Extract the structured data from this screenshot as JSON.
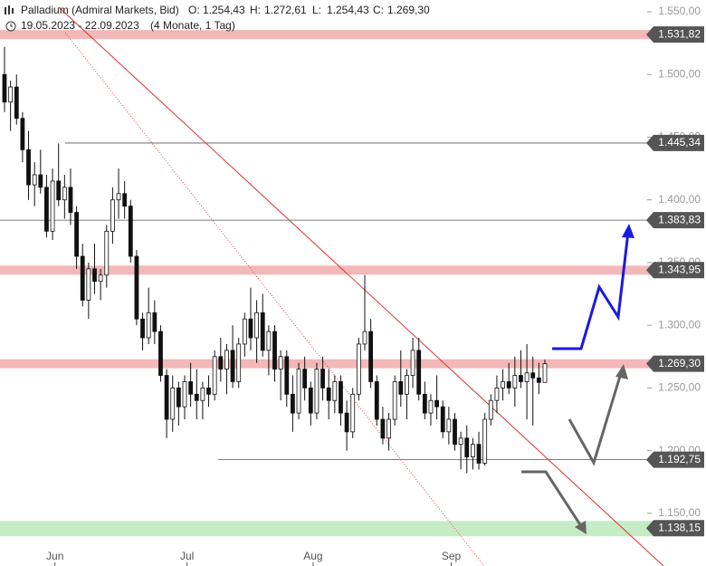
{
  "header": {
    "instrument": "Palladium (Admiral Markets, Bid)",
    "ohlc": [
      {
        "key": "O:",
        "label": "1.254,43"
      },
      {
        "key": "H:",
        "label": "1.272,61"
      },
      {
        "key": "L:",
        "label": "1.254,43"
      },
      {
        "key": "C:",
        "label": "1.269,30"
      }
    ],
    "range": "19.05.2023 - 22.09.2023",
    "span": "(4 Monate, 1 Tag)"
  },
  "chart_data": {
    "type": "candlestick",
    "categories": [
      null,
      null,
      null,
      null,
      null,
      null,
      null,
      null,
      null,
      "Jun",
      null,
      null,
      null,
      null,
      null,
      null,
      null,
      null,
      null,
      null,
      null,
      null,
      null,
      null,
      null,
      null,
      null,
      null,
      null,
      null,
      null,
      "Jul",
      null,
      null,
      null,
      null,
      null,
      null,
      null,
      null,
      null,
      null,
      null,
      null,
      null,
      null,
      null,
      null,
      null,
      null,
      null,
      null,
      "Aug",
      null,
      null,
      null,
      null,
      null,
      null,
      null,
      null,
      null,
      null,
      null,
      null,
      null,
      null,
      null,
      null,
      null,
      null,
      null,
      null,
      null,
      null,
      "Sep",
      null,
      null,
      null,
      null,
      null,
      null,
      null,
      null,
      null,
      null,
      null,
      null,
      null,
      null,
      null
    ],
    "ohlc": [
      [
        1500,
        1522,
        1470,
        1478
      ],
      [
        1478,
        1495,
        1455,
        1490
      ],
      [
        1490,
        1500,
        1460,
        1465
      ],
      [
        1465,
        1470,
        1430,
        1440
      ],
      [
        1440,
        1455,
        1400,
        1412
      ],
      [
        1412,
        1430,
        1395,
        1420
      ],
      [
        1420,
        1440,
        1405,
        1410
      ],
      [
        1410,
        1420,
        1370,
        1375
      ],
      [
        1375,
        1425,
        1368,
        1415
      ],
      [
        1415,
        1445,
        1395,
        1400
      ],
      [
        1400,
        1420,
        1385,
        1410
      ],
      [
        1410,
        1425,
        1380,
        1390
      ],
      [
        1390,
        1395,
        1345,
        1355
      ],
      [
        1355,
        1365,
        1315,
        1320
      ],
      [
        1320,
        1350,
        1305,
        1345
      ],
      [
        1345,
        1365,
        1325,
        1335
      ],
      [
        1335,
        1345,
        1320,
        1340
      ],
      [
        1340,
        1380,
        1330,
        1375
      ],
      [
        1375,
        1410,
        1365,
        1400
      ],
      [
        1400,
        1425,
        1385,
        1405
      ],
      [
        1405,
        1415,
        1385,
        1395
      ],
      [
        1395,
        1400,
        1350,
        1355
      ],
      [
        1355,
        1360,
        1300,
        1305
      ],
      [
        1305,
        1310,
        1280,
        1290
      ],
      [
        1290,
        1330,
        1285,
        1310
      ],
      [
        1310,
        1320,
        1285,
        1295
      ],
      [
        1295,
        1300,
        1255,
        1260
      ],
      [
        1260,
        1265,
        1210,
        1225
      ],
      [
        1225,
        1260,
        1215,
        1250
      ],
      [
        1250,
        1255,
        1220,
        1235
      ],
      [
        1235,
        1260,
        1225,
        1255
      ],
      [
        1255,
        1270,
        1235,
        1245
      ],
      [
        1245,
        1265,
        1225,
        1240
      ],
      [
        1240,
        1255,
        1225,
        1250
      ],
      [
        1250,
        1260,
        1235,
        1245
      ],
      [
        1245,
        1280,
        1240,
        1275
      ],
      [
        1275,
        1290,
        1255,
        1265
      ],
      [
        1265,
        1285,
        1245,
        1280
      ],
      [
        1280,
        1300,
        1250,
        1255
      ],
      [
        1255,
        1290,
        1250,
        1285
      ],
      [
        1285,
        1310,
        1275,
        1305
      ],
      [
        1305,
        1330,
        1280,
        1290
      ],
      [
        1290,
        1320,
        1270,
        1310
      ],
      [
        1310,
        1325,
        1275,
        1280
      ],
      [
        1280,
        1300,
        1260,
        1295
      ],
      [
        1295,
        1300,
        1255,
        1265
      ],
      [
        1265,
        1280,
        1240,
        1275
      ],
      [
        1275,
        1280,
        1235,
        1245
      ],
      [
        1245,
        1260,
        1215,
        1230
      ],
      [
        1230,
        1270,
        1225,
        1265
      ],
      [
        1265,
        1275,
        1240,
        1250
      ],
      [
        1250,
        1255,
        1220,
        1230
      ],
      [
        1230,
        1270,
        1225,
        1265
      ],
      [
        1265,
        1275,
        1240,
        1250
      ],
      [
        1250,
        1265,
        1225,
        1240
      ],
      [
        1240,
        1260,
        1230,
        1255
      ],
      [
        1255,
        1260,
        1220,
        1230
      ],
      [
        1230,
        1240,
        1200,
        1215
      ],
      [
        1215,
        1250,
        1210,
        1245
      ],
      [
        1245,
        1290,
        1240,
        1285
      ],
      [
        1285,
        1340,
        1280,
        1295
      ],
      [
        1295,
        1305,
        1250,
        1255
      ],
      [
        1255,
        1260,
        1220,
        1225
      ],
      [
        1225,
        1235,
        1205,
        1210
      ],
      [
        1210,
        1230,
        1200,
        1225
      ],
      [
        1225,
        1260,
        1220,
        1255
      ],
      [
        1255,
        1280,
        1235,
        1245
      ],
      [
        1245,
        1265,
        1225,
        1260
      ],
      [
        1260,
        1290,
        1250,
        1280
      ],
      [
        1280,
        1290,
        1240,
        1245
      ],
      [
        1245,
        1255,
        1225,
        1230
      ],
      [
        1230,
        1245,
        1220,
        1240
      ],
      [
        1240,
        1260,
        1225,
        1235
      ],
      [
        1235,
        1240,
        1210,
        1215
      ],
      [
        1215,
        1235,
        1205,
        1225
      ],
      [
        1225,
        1230,
        1200,
        1205
      ],
      [
        1205,
        1215,
        1185,
        1210
      ],
      [
        1210,
        1220,
        1182,
        1195
      ],
      [
        1195,
        1210,
        1185,
        1205
      ],
      [
        1205,
        1215,
        1185,
        1190
      ],
      [
        1190,
        1230,
        1188,
        1225
      ],
      [
        1225,
        1245,
        1220,
        1240
      ],
      [
        1240,
        1260,
        1230,
        1250
      ],
      [
        1250,
        1265,
        1240,
        1255
      ],
      [
        1255,
        1270,
        1245,
        1250
      ],
      [
        1250,
        1275,
        1235,
        1260
      ],
      [
        1260,
        1280,
        1250,
        1255
      ],
      [
        1255,
        1285,
        1225,
        1262
      ],
      [
        1262,
        1275,
        1220,
        1258
      ],
      [
        1258,
        1270,
        1245,
        1254.43
      ],
      [
        1254.43,
        1272.61,
        1254.43,
        1269.3
      ]
    ],
    "ylim": [
      1108,
      1559.4
    ],
    "yticks": [
      {
        "value": 1550,
        "label": "1.550,00"
      },
      {
        "value": 1500,
        "label": "1.500,00"
      },
      {
        "value": 1450,
        "label": "1.450,00"
      },
      {
        "value": 1400,
        "label": "1.400,00"
      },
      {
        "value": 1350,
        "label": "1.350,00"
      },
      {
        "value": 1300,
        "label": "1.300,00"
      },
      {
        "value": 1250,
        "label": "1.250,00"
      },
      {
        "value": 1200,
        "label": "1.200,00"
      },
      {
        "value": 1150,
        "label": "1.150,00"
      }
    ],
    "levels": [
      {
        "value": 1531.82,
        "label": "1.531,82",
        "style": "band",
        "color": "#f3b8b8"
      },
      {
        "value": 1445.34,
        "label": "1.445,34",
        "style": "line",
        "color": "#555555"
      },
      {
        "value": 1383.83,
        "label": "1.383,83",
        "style": "line",
        "color": "#555555"
      },
      {
        "value": 1343.95,
        "label": "1.343,95",
        "style": "band",
        "color": "#f3b8b8"
      },
      {
        "value": 1269.3,
        "label": "1.269,30",
        "style": "band",
        "color": "#f3b8b8"
      },
      {
        "value": 1192.75,
        "label": "1.192,75",
        "style": "line",
        "color": "#555555"
      },
      {
        "value": 1138.15,
        "label": "1.138,15",
        "style": "band",
        "color": "#c5ecc5"
      }
    ]
  }
}
